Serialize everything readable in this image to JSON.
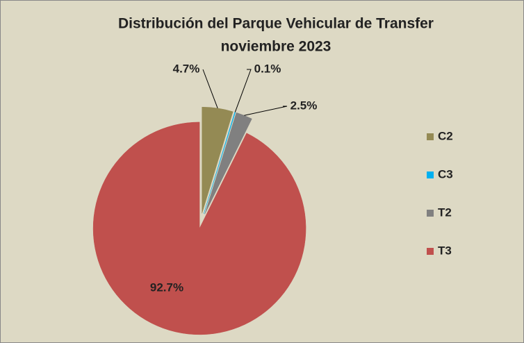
{
  "chart_data": {
    "type": "pie",
    "title": "Distribución del Parque Vehicular de Transfer",
    "subtitle": "noviembre 2023",
    "categories": [
      "C2",
      "C3",
      "T2",
      "T3"
    ],
    "values": [
      4.7,
      0.1,
      2.5,
      92.7
    ],
    "value_labels": [
      "4.7%",
      "0.1%",
      "2.5%",
      "92.7%"
    ],
    "colors": [
      "#948a54",
      "#00b0f0",
      "#808080",
      "#c0504d"
    ],
    "legend": "right"
  }
}
